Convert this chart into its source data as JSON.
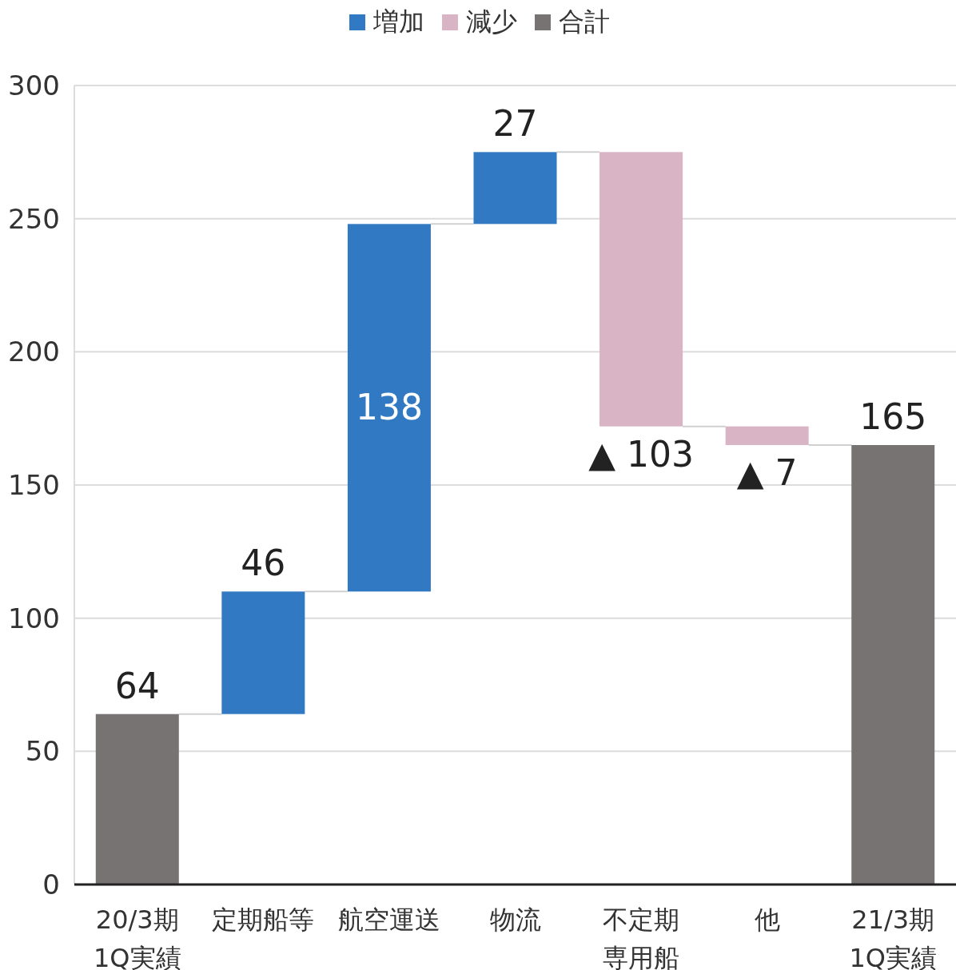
{
  "chart_data": {
    "type": "bar",
    "categories": [
      "20/3期\n1Q実績",
      "定期船等",
      "航空運送",
      "物流",
      "不定期専用船",
      "他",
      "21/3期\n1Q実績"
    ],
    "series": [
      {
        "name": "増加",
        "color": "#3179c2",
        "base": [
          null,
          64,
          110,
          248,
          null,
          null,
          null
        ],
        "values": [
          null,
          46,
          138,
          27,
          null,
          null,
          null
        ],
        "value_labels": [
          null,
          "46",
          "138",
          "27",
          null,
          null,
          null
        ]
      },
      {
        "name": "減少",
        "color": "#d8b4c4",
        "base": [
          null,
          null,
          null,
          null,
          172,
          165,
          null
        ],
        "values": [
          null,
          null,
          null,
          null,
          103,
          7,
          null
        ],
        "value_labels": [
          null,
          null,
          null,
          null,
          "▲ 103",
          "▲ 7",
          null
        ]
      },
      {
        "name": "合計",
        "color": "#787373",
        "base": [
          null,
          null,
          null,
          null,
          null,
          null,
          0
        ],
        "values": [
          64,
          null,
          null,
          null,
          null,
          null,
          165
        ],
        "value_labels": [
          "64",
          null,
          null,
          null,
          null,
          null,
          "165"
        ]
      }
    ],
    "ylim": [
      0,
      300
    ],
    "yticks": [
      0,
      50,
      100,
      150,
      200,
      250,
      300
    ],
    "grid": "y",
    "legend": "top"
  }
}
